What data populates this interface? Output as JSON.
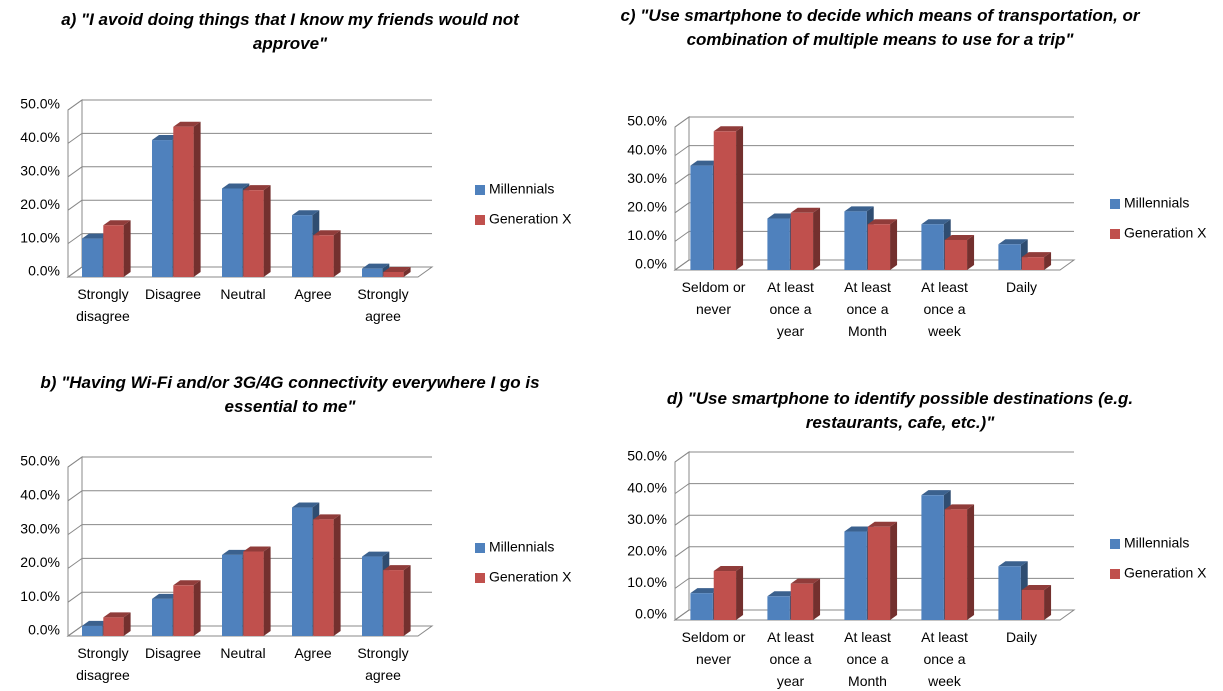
{
  "chart_data": [
    {
      "type": "bar3d",
      "title": "a) \"I avoid doing things that I know my friends would not approve\"",
      "categories": [
        "Strongly disagree",
        "Disagree",
        "Neutral",
        "Agree",
        "Strongly agree"
      ],
      "series": [
        {
          "name": "Millennials",
          "color": "#4f81bd",
          "values": [
            11.5,
            41,
            26.5,
            18.5,
            2.5
          ]
        },
        {
          "name": "Generation X",
          "color": "#c0504d",
          "values": [
            15.5,
            45,
            26,
            12.5,
            1.5
          ]
        }
      ],
      "ylim": [
        0,
        50
      ],
      "yticks": [
        {
          "value": 0,
          "label": "0.0%"
        },
        {
          "value": 10,
          "label": "10.0%"
        },
        {
          "value": 20,
          "label": "20.0%"
        },
        {
          "value": 30,
          "label": "30.0%"
        },
        {
          "value": 40,
          "label": "40.0%"
        },
        {
          "value": 50,
          "label": "50.0%"
        }
      ],
      "grid": true,
      "legend": "right"
    },
    {
      "type": "bar3d",
      "title": "c) \"Use smartphone to decide which means of transportation, or combination of multiple means to use for a trip\"",
      "categories": [
        "Seldom or never",
        "At least once a year",
        "At least once a Month",
        "At least once a week",
        "Daily"
      ],
      "series": [
        {
          "name": "Millennials",
          "color": "#4f81bd",
          "values": [
            36.5,
            18,
            20.5,
            16,
            9
          ]
        },
        {
          "name": "Generation X",
          "color": "#c0504d",
          "values": [
            48.5,
            20,
            16,
            10.5,
            4.5
          ]
        }
      ],
      "ylim": [
        0,
        50
      ],
      "yticks": [
        {
          "value": 0,
          "label": "0.0%"
        },
        {
          "value": 10,
          "label": "10.0%"
        },
        {
          "value": 20,
          "label": "20.0%"
        },
        {
          "value": 30,
          "label": "30.0%"
        },
        {
          "value": 40,
          "label": "40.0%"
        },
        {
          "value": 50,
          "label": "50.0%"
        }
      ],
      "grid": true,
      "legend": "right"
    },
    {
      "type": "bar3d",
      "title": "b) \"Having Wi-Fi and/or 3G/4G connectivity everywhere I go is essential to me\"",
      "categories": [
        "Strongly disagree",
        "Disagree",
        "Neutral",
        "Agree",
        "Strongly agree"
      ],
      "series": [
        {
          "name": "Millennials",
          "color": "#4f81bd",
          "values": [
            3,
            11,
            24,
            38,
            23.5
          ]
        },
        {
          "name": "Generation X",
          "color": "#c0504d",
          "values": [
            5.5,
            15,
            25,
            34.5,
            19.5
          ]
        }
      ],
      "ylim": [
        0,
        50
      ],
      "yticks": [
        {
          "value": 0,
          "label": "0.0%"
        },
        {
          "value": 10,
          "label": "10.0%"
        },
        {
          "value": 20,
          "label": "20.0%"
        },
        {
          "value": 30,
          "label": "30.0%"
        },
        {
          "value": 40,
          "label": "40.0%"
        },
        {
          "value": 50,
          "label": "50.0%"
        }
      ],
      "grid": true,
      "legend": "right"
    },
    {
      "type": "bar3d",
      "title": "d) \"Use smartphone to identify possible destinations (e.g. restaurants, cafe, etc.)\"",
      "categories": [
        "Seldom or never",
        "At least once a year",
        "At least once a Month",
        "At least once a week",
        "Daily"
      ],
      "series": [
        {
          "name": "Millennials",
          "color": "#4f81bd",
          "values": [
            8.5,
            7.5,
            28,
            39.5,
            17
          ]
        },
        {
          "name": "Generation X",
          "color": "#c0504d",
          "values": [
            15.5,
            11.5,
            29.5,
            35,
            9.5
          ]
        }
      ],
      "ylim": [
        0,
        50
      ],
      "yticks": [
        {
          "value": 0,
          "label": "0.0%"
        },
        {
          "value": 10,
          "label": "10.0%"
        },
        {
          "value": 20,
          "label": "20.0%"
        },
        {
          "value": 30,
          "label": "30.0%"
        },
        {
          "value": 40,
          "label": "40.0%"
        },
        {
          "value": 50,
          "label": "50.0%"
        }
      ],
      "grid": true,
      "legend": "right"
    }
  ]
}
